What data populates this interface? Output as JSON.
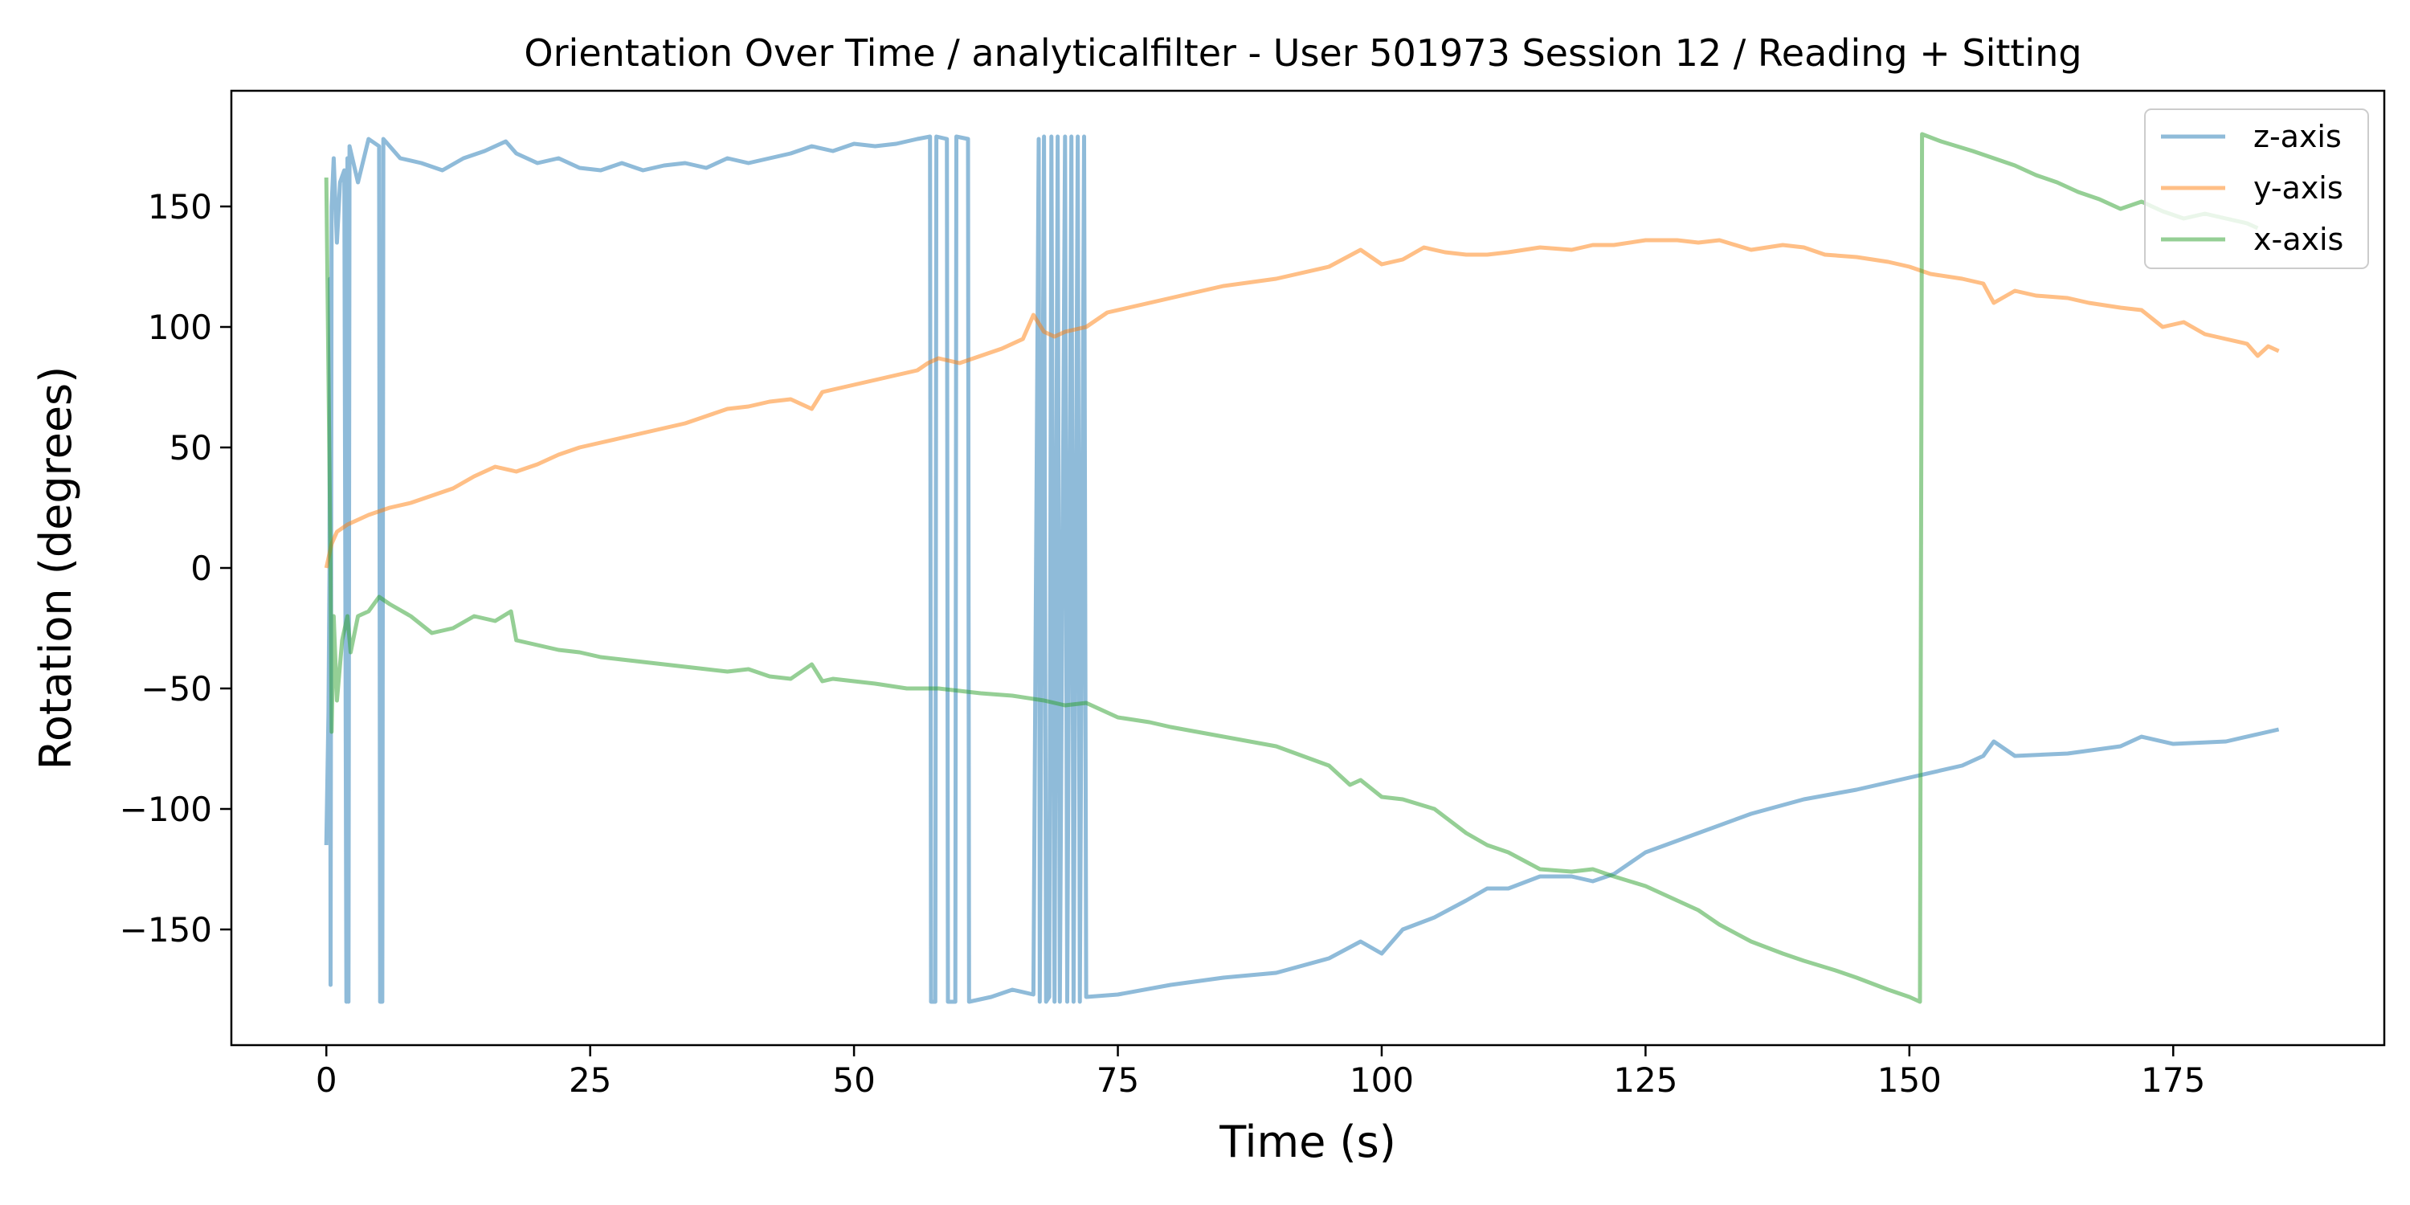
{
  "chart_data": {
    "type": "line",
    "title": "Orientation Over Time / analyticalfilter - User 501973 Session 12 / Reading + Sitting",
    "xlabel": "Time (s)",
    "ylabel": "Rotation (degrees)",
    "xlim": [
      -9,
      195
    ],
    "ylim": [
      -198,
      198
    ],
    "xticks": [
      0,
      25,
      50,
      75,
      100,
      125,
      150,
      175
    ],
    "yticks": [
      -150,
      -100,
      -50,
      0,
      50,
      100,
      150
    ],
    "ytick_labels": [
      "−150",
      "−100",
      "−50",
      "0",
      "50",
      "100",
      "150"
    ],
    "grid": false,
    "legend_position": "top-right",
    "series": [
      {
        "name": "z-axis",
        "color": "#1f77b4",
        "opacity": 0.5,
        "points": [
          [
            0,
            -115
          ],
          [
            0.2,
            -60
          ],
          [
            0.3,
            0
          ],
          [
            0.35,
            120
          ],
          [
            0.4,
            -173
          ],
          [
            0.5,
            150
          ],
          [
            0.7,
            170
          ],
          [
            1.0,
            135
          ],
          [
            1.3,
            160
          ],
          [
            1.7,
            165
          ],
          [
            1.9,
            -180
          ],
          [
            2.0,
            170
          ],
          [
            2.1,
            -180
          ],
          [
            2.2,
            175
          ],
          [
            3,
            160
          ],
          [
            4,
            178
          ],
          [
            5.0,
            175
          ],
          [
            5.1,
            -180
          ],
          [
            5.3,
            -180
          ],
          [
            5.4,
            178
          ],
          [
            7,
            170
          ],
          [
            9,
            168
          ],
          [
            11,
            165
          ],
          [
            13,
            170
          ],
          [
            15,
            173
          ],
          [
            17,
            177
          ],
          [
            18,
            172
          ],
          [
            20,
            168
          ],
          [
            22,
            170
          ],
          [
            24,
            166
          ],
          [
            26,
            165
          ],
          [
            28,
            168
          ],
          [
            30,
            165
          ],
          [
            32,
            167
          ],
          [
            34,
            168
          ],
          [
            36,
            166
          ],
          [
            38,
            170
          ],
          [
            40,
            168
          ],
          [
            42,
            170
          ],
          [
            44,
            172
          ],
          [
            46,
            175
          ],
          [
            48,
            173
          ],
          [
            50,
            176
          ],
          [
            52,
            175
          ],
          [
            54,
            176
          ],
          [
            56,
            178
          ],
          [
            57.2,
            179
          ],
          [
            57.3,
            -180
          ],
          [
            57.7,
            -180
          ],
          [
            57.8,
            179
          ],
          [
            58.8,
            178
          ],
          [
            58.9,
            -180
          ],
          [
            59.6,
            -180
          ],
          [
            59.7,
            179
          ],
          [
            60.8,
            178
          ],
          [
            60.9,
            -180
          ],
          [
            63,
            -178
          ],
          [
            65,
            -175
          ],
          [
            67,
            -177
          ],
          [
            67.5,
            178
          ],
          [
            67.6,
            -180
          ],
          [
            68,
            179
          ],
          [
            68.2,
            -180
          ],
          [
            68.5,
            -178
          ],
          [
            68.7,
            179
          ],
          [
            69.0,
            -180
          ],
          [
            69.3,
            179
          ],
          [
            69.5,
            -180
          ],
          [
            70.0,
            179
          ],
          [
            70.2,
            -180
          ],
          [
            70.6,
            179
          ],
          [
            70.8,
            -180
          ],
          [
            71.2,
            179
          ],
          [
            71.4,
            -180
          ],
          [
            71.8,
            179
          ],
          [
            72.0,
            -178
          ],
          [
            75,
            -177
          ],
          [
            80,
            -173
          ],
          [
            85,
            -170
          ],
          [
            90,
            -168
          ],
          [
            95,
            -162
          ],
          [
            98,
            -155
          ],
          [
            100,
            -160
          ],
          [
            102,
            -150
          ],
          [
            105,
            -145
          ],
          [
            108,
            -138
          ],
          [
            110,
            -133
          ],
          [
            112,
            -133
          ],
          [
            115,
            -128
          ],
          [
            118,
            -128
          ],
          [
            120,
            -130
          ],
          [
            122,
            -127
          ],
          [
            125,
            -118
          ],
          [
            130,
            -110
          ],
          [
            135,
            -102
          ],
          [
            140,
            -96
          ],
          [
            145,
            -92
          ],
          [
            150,
            -87
          ],
          [
            155,
            -82
          ],
          [
            157,
            -78
          ],
          [
            158,
            -72
          ],
          [
            160,
            -78
          ],
          [
            165,
            -77
          ],
          [
            170,
            -74
          ],
          [
            172,
            -70
          ],
          [
            175,
            -73
          ],
          [
            180,
            -72
          ],
          [
            185,
            -67
          ]
        ]
      },
      {
        "name": "y-axis",
        "color": "#ff7f0e",
        "opacity": 0.5,
        "points": [
          [
            0,
            0
          ],
          [
            0.5,
            10
          ],
          [
            1,
            15
          ],
          [
            2,
            18
          ],
          [
            4,
            22
          ],
          [
            6,
            25
          ],
          [
            8,
            27
          ],
          [
            10,
            30
          ],
          [
            12,
            33
          ],
          [
            14,
            38
          ],
          [
            16,
            42
          ],
          [
            18,
            40
          ],
          [
            20,
            43
          ],
          [
            22,
            47
          ],
          [
            24,
            50
          ],
          [
            26,
            52
          ],
          [
            28,
            54
          ],
          [
            30,
            56
          ],
          [
            32,
            58
          ],
          [
            34,
            60
          ],
          [
            36,
            63
          ],
          [
            38,
            66
          ],
          [
            40,
            67
          ],
          [
            42,
            69
          ],
          [
            44,
            70
          ],
          [
            46,
            66
          ],
          [
            47,
            73
          ],
          [
            48,
            74
          ],
          [
            50,
            76
          ],
          [
            52,
            78
          ],
          [
            54,
            80
          ],
          [
            56,
            82
          ],
          [
            57,
            85
          ],
          [
            58,
            87
          ],
          [
            60,
            85
          ],
          [
            62,
            88
          ],
          [
            64,
            91
          ],
          [
            66,
            95
          ],
          [
            67,
            105
          ],
          [
            68,
            98
          ],
          [
            69,
            96
          ],
          [
            70,
            98
          ],
          [
            72,
            100
          ],
          [
            74,
            106
          ],
          [
            76,
            108
          ],
          [
            80,
            112
          ],
          [
            85,
            117
          ],
          [
            90,
            120
          ],
          [
            95,
            125
          ],
          [
            98,
            132
          ],
          [
            100,
            126
          ],
          [
            102,
            128
          ],
          [
            104,
            133
          ],
          [
            106,
            131
          ],
          [
            108,
            130
          ],
          [
            110,
            130
          ],
          [
            112,
            131
          ],
          [
            115,
            133
          ],
          [
            118,
            132
          ],
          [
            120,
            134
          ],
          [
            122,
            134
          ],
          [
            125,
            136
          ],
          [
            128,
            136
          ],
          [
            130,
            135
          ],
          [
            132,
            136
          ],
          [
            135,
            132
          ],
          [
            138,
            134
          ],
          [
            140,
            133
          ],
          [
            142,
            130
          ],
          [
            145,
            129
          ],
          [
            148,
            127
          ],
          [
            150,
            125
          ],
          [
            152,
            122
          ],
          [
            155,
            120
          ],
          [
            157,
            118
          ],
          [
            158,
            110
          ],
          [
            160,
            115
          ],
          [
            162,
            113
          ],
          [
            165,
            112
          ],
          [
            167,
            110
          ],
          [
            170,
            108
          ],
          [
            172,
            107
          ],
          [
            174,
            100
          ],
          [
            176,
            102
          ],
          [
            178,
            97
          ],
          [
            180,
            95
          ],
          [
            182,
            93
          ],
          [
            183,
            88
          ],
          [
            184,
            92
          ],
          [
            185,
            90
          ]
        ]
      },
      {
        "name": "x-axis",
        "color": "#2ca02c",
        "opacity": 0.5,
        "points": [
          [
            0,
            162
          ],
          [
            0.2,
            80
          ],
          [
            0.4,
            0
          ],
          [
            0.5,
            -68
          ],
          [
            0.7,
            -20
          ],
          [
            1,
            -55
          ],
          [
            1.5,
            -30
          ],
          [
            2,
            -20
          ],
          [
            2.3,
            -35
          ],
          [
            3,
            -20
          ],
          [
            4,
            -18
          ],
          [
            5,
            -12
          ],
          [
            6,
            -15
          ],
          [
            8,
            -20
          ],
          [
            10,
            -27
          ],
          [
            12,
            -25
          ],
          [
            14,
            -20
          ],
          [
            16,
            -22
          ],
          [
            17.5,
            -18
          ],
          [
            18,
            -30
          ],
          [
            20,
            -32
          ],
          [
            22,
            -34
          ],
          [
            24,
            -35
          ],
          [
            26,
            -37
          ],
          [
            28,
            -38
          ],
          [
            30,
            -39
          ],
          [
            32,
            -40
          ],
          [
            34,
            -41
          ],
          [
            36,
            -42
          ],
          [
            38,
            -43
          ],
          [
            40,
            -42
          ],
          [
            42,
            -45
          ],
          [
            44,
            -46
          ],
          [
            46,
            -40
          ],
          [
            47,
            -47
          ],
          [
            48,
            -46
          ],
          [
            50,
            -47
          ],
          [
            52,
            -48
          ],
          [
            55,
            -50
          ],
          [
            58,
            -50
          ],
          [
            60,
            -51
          ],
          [
            62,
            -52
          ],
          [
            65,
            -53
          ],
          [
            68,
            -55
          ],
          [
            70,
            -57
          ],
          [
            72,
            -56
          ],
          [
            75,
            -62
          ],
          [
            78,
            -64
          ],
          [
            80,
            -66
          ],
          [
            85,
            -70
          ],
          [
            90,
            -74
          ],
          [
            95,
            -82
          ],
          [
            97,
            -90
          ],
          [
            98,
            -88
          ],
          [
            100,
            -95
          ],
          [
            102,
            -96
          ],
          [
            105,
            -100
          ],
          [
            108,
            -110
          ],
          [
            110,
            -115
          ],
          [
            112,
            -118
          ],
          [
            115,
            -125
          ],
          [
            118,
            -126
          ],
          [
            120,
            -125
          ],
          [
            122,
            -128
          ],
          [
            125,
            -132
          ],
          [
            128,
            -138
          ],
          [
            130,
            -142
          ],
          [
            132,
            -148
          ],
          [
            135,
            -155
          ],
          [
            138,
            -160
          ],
          [
            140,
            -163
          ],
          [
            143,
            -167
          ],
          [
            145,
            -170
          ],
          [
            148,
            -175
          ],
          [
            150,
            -178
          ],
          [
            151,
            -180
          ],
          [
            151.2,
            180
          ],
          [
            153,
            177
          ],
          [
            156,
            173
          ],
          [
            158,
            170
          ],
          [
            160,
            167
          ],
          [
            162,
            163
          ],
          [
            164,
            160
          ],
          [
            166,
            156
          ],
          [
            168,
            153
          ],
          [
            170,
            149
          ],
          [
            172,
            152
          ],
          [
            174,
            148
          ],
          [
            176,
            145
          ],
          [
            178,
            147
          ],
          [
            180,
            145
          ],
          [
            182,
            143
          ],
          [
            183,
            141
          ]
        ]
      }
    ]
  }
}
